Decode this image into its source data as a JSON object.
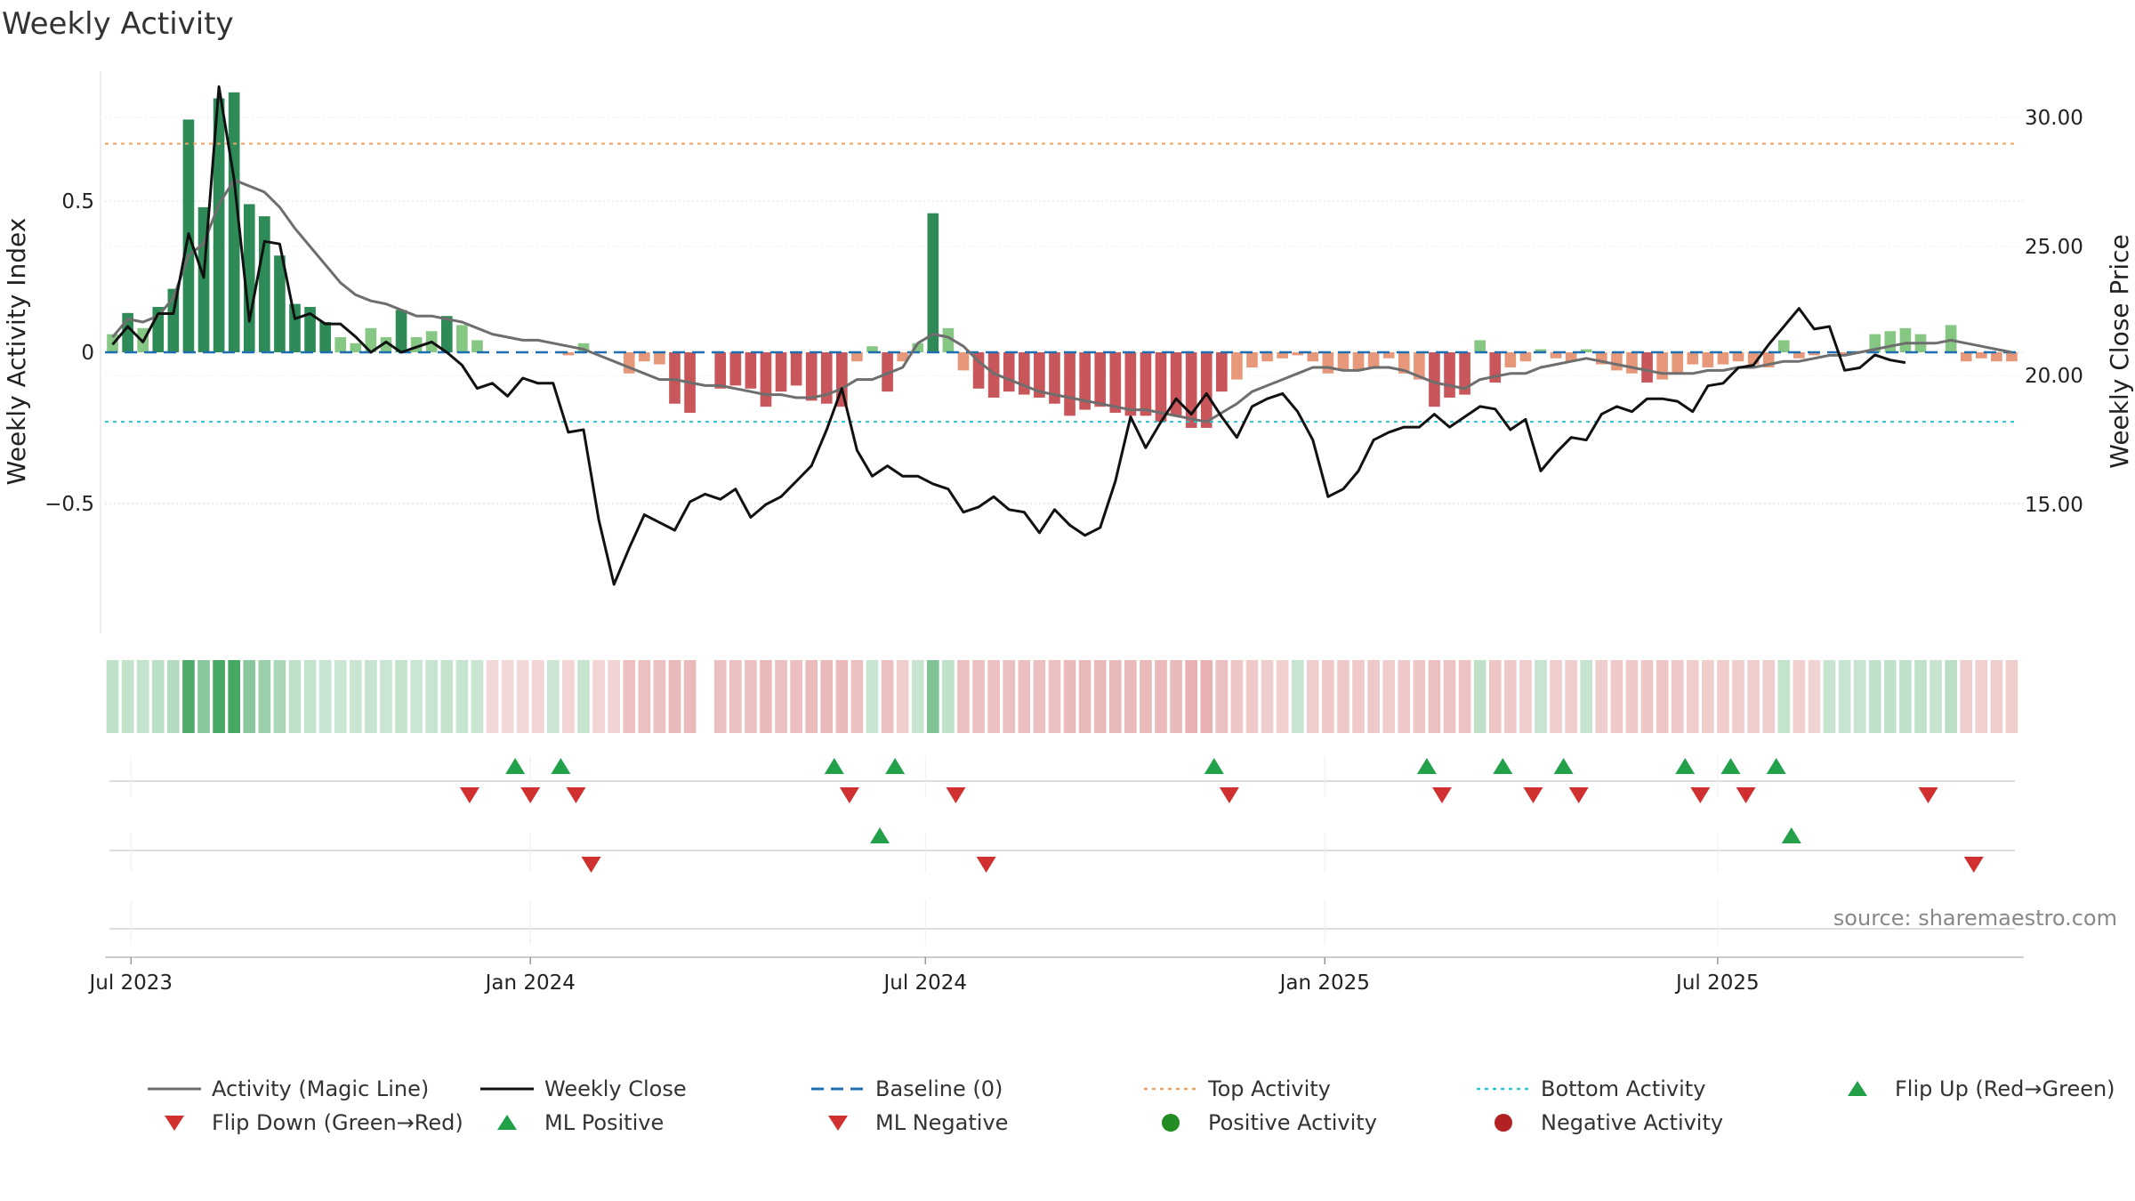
{
  "chart_data": {
    "type": "bar",
    "title": "Weekly Activity",
    "ylabel": "Weekly Activity Index",
    "y2label": "Weekly Close Price",
    "ylim": [
      -0.93,
      0.93
    ],
    "y2lim": [
      10.0,
      31.8
    ],
    "y_ticks": [
      {
        "value": 0.5,
        "label": "0.5"
      },
      {
        "value": 0,
        "label": "0"
      },
      {
        "value": -0.5,
        "label": "−0.5"
      }
    ],
    "y2_ticks": [
      {
        "value": 30,
        "label": "30.00"
      },
      {
        "value": 25,
        "label": "25.00"
      },
      {
        "value": 20,
        "label": "20.00"
      },
      {
        "value": 15,
        "label": "15.00"
      }
    ],
    "top_activity": 0.69,
    "bottom_activity": -0.23,
    "x_start": "2023-06-19",
    "x_ticks": [
      {
        "date": "2023-07-01",
        "label": "Jul 2023"
      },
      {
        "date": "2024-01-01",
        "label": "Jan 2024"
      },
      {
        "date": "2024-07-01",
        "label": "Jul 2024"
      },
      {
        "date": "2025-01-01",
        "label": "Jan 2025"
      },
      {
        "date": "2025-07-01",
        "label": "Jul 2025"
      }
    ],
    "activity_bars": [
      0.06,
      0.13,
      0.08,
      0.15,
      0.21,
      0.77,
      0.48,
      0.84,
      0.86,
      0.49,
      0.45,
      0.32,
      0.16,
      0.15,
      0.1,
      0.05,
      0.03,
      0.08,
      0.05,
      0.14,
      0.05,
      0.07,
      0.12,
      0.09,
      0.04,
      0,
      0,
      0,
      0,
      0,
      -0.01,
      0.03,
      0,
      0,
      -0.07,
      -0.03,
      -0.04,
      -0.17,
      -0.2,
      0,
      -0.12,
      -0.11,
      -0.12,
      -0.18,
      -0.13,
      -0.11,
      -0.16,
      -0.17,
      -0.18,
      -0.03,
      0.02,
      -0.13,
      -0.03,
      0.03,
      0.46,
      0.08,
      -0.06,
      -0.12,
      -0.15,
      -0.13,
      -0.14,
      -0.15,
      -0.17,
      -0.21,
      -0.19,
      -0.18,
      -0.2,
      -0.21,
      -0.21,
      -0.23,
      -0.21,
      -0.25,
      -0.25,
      -0.13,
      -0.09,
      -0.05,
      -0.03,
      -0.02,
      -0.01,
      -0.03,
      -0.07,
      -0.06,
      -0.06,
      -0.05,
      -0.02,
      -0.07,
      -0.09,
      -0.18,
      -0.15,
      -0.14,
      0.04,
      -0.1,
      -0.05,
      -0.03,
      0.01,
      -0.02,
      -0.03,
      0.01,
      -0.04,
      -0.06,
      -0.07,
      -0.1,
      -0.09,
      -0.07,
      -0.04,
      -0.05,
      -0.04,
      -0.03,
      -0.04,
      -0.05,
      0.04,
      -0.02,
      -0.01,
      0,
      -0.01,
      0,
      0.06,
      0.07,
      0.08,
      0.06,
      0,
      0.09,
      -0.03,
      -0.02,
      -0.03,
      -0.03
    ],
    "magic_line": [
      0.05,
      0.11,
      0.1,
      0.12,
      0.18,
      0.32,
      0.36,
      0.49,
      0.57,
      0.55,
      0.53,
      0.48,
      0.41,
      0.35,
      0.29,
      0.23,
      0.19,
      0.17,
      0.16,
      0.14,
      0.12,
      0.12,
      0.11,
      0.1,
      0.08,
      0.06,
      0.05,
      0.04,
      0.04,
      0.03,
      0.02,
      0.01,
      -0.01,
      -0.03,
      -0.05,
      -0.07,
      -0.09,
      -0.09,
      -0.1,
      -0.11,
      -0.11,
      -0.12,
      -0.13,
      -0.14,
      -0.14,
      -0.15,
      -0.15,
      -0.14,
      -0.12,
      -0.09,
      -0.09,
      -0.07,
      -0.05,
      0.03,
      0.06,
      0.05,
      0.02,
      -0.03,
      -0.07,
      -0.09,
      -0.11,
      -0.13,
      -0.14,
      -0.15,
      -0.16,
      -0.17,
      -0.18,
      -0.19,
      -0.19,
      -0.2,
      -0.21,
      -0.22,
      -0.23,
      -0.2,
      -0.17,
      -0.13,
      -0.11,
      -0.09,
      -0.07,
      -0.05,
      -0.05,
      -0.06,
      -0.06,
      -0.05,
      -0.05,
      -0.06,
      -0.08,
      -0.1,
      -0.11,
      -0.12,
      -0.09,
      -0.08,
      -0.07,
      -0.07,
      -0.05,
      -0.04,
      -0.03,
      -0.02,
      -0.03,
      -0.04,
      -0.05,
      -0.06,
      -0.07,
      -0.07,
      -0.07,
      -0.06,
      -0.06,
      -0.05,
      -0.05,
      -0.04,
      -0.03,
      -0.03,
      -0.02,
      -0.01,
      -0.01,
      0,
      0.01,
      0.02,
      0.03,
      0.03,
      0.03,
      0.04,
      0.03,
      0.02,
      0.01,
      0
    ],
    "weekly_close": [
      21.2,
      21.9,
      21.3,
      22.4,
      22.4,
      25.5,
      23.8,
      31.2,
      27.6,
      22.1,
      25.2,
      25.1,
      22.2,
      22.4,
      22.0,
      22.0,
      21.5,
      20.9,
      21.3,
      20.9,
      21.1,
      21.3,
      20.9,
      20.4,
      19.5,
      19.7,
      19.2,
      19.9,
      19.7,
      19.7,
      17.8,
      17.9,
      14.4,
      11.9,
      13.3,
      14.6,
      14.3,
      14.0,
      15.1,
      15.4,
      15.2,
      15.6,
      14.5,
      15.0,
      15.3,
      15.9,
      16.5,
      17.9,
      19.5,
      17.1,
      16.1,
      16.5,
      16.1,
      16.1,
      15.8,
      15.6,
      14.7,
      14.9,
      15.3,
      14.8,
      14.7,
      13.9,
      14.8,
      14.2,
      13.8,
      14.1,
      15.9,
      18.4,
      17.2,
      18.2,
      19.1,
      18.5,
      19.3,
      18.4,
      17.6,
      18.8,
      19.1,
      19.3,
      18.6,
      17.5,
      15.3,
      15.6,
      16.3,
      17.5,
      17.8,
      18.0,
      18.0,
      18.5,
      18.0,
      18.4,
      18.8,
      18.7,
      17.9,
      18.3,
      16.3,
      17.0,
      17.6,
      17.5,
      18.5,
      18.8,
      18.6,
      19.1,
      19.1,
      19.0,
      18.6,
      19.6,
      19.7,
      20.3,
      20.4,
      21.2,
      21.9,
      22.6,
      21.8,
      21.9,
      20.2,
      20.3,
      20.8,
      20.6,
      20.5
    ],
    "heat_strip": [
      0.22,
      0.2,
      0.2,
      0.24,
      0.3,
      0.9,
      0.55,
      0.95,
      0.95,
      0.55,
      0.45,
      0.35,
      0.22,
      0.2,
      0.18,
      0.16,
      0.16,
      0.18,
      0.16,
      0.2,
      0.16,
      0.18,
      0.2,
      0.18,
      0.16,
      -0.12,
      -0.12,
      -0.12,
      -0.14,
      0.16,
      -0.14,
      0.18,
      -0.14,
      -0.16,
      -0.3,
      -0.3,
      -0.3,
      -0.35,
      -0.35,
      null,
      -0.3,
      -0.3,
      -0.3,
      -0.35,
      -0.3,
      -0.3,
      -0.32,
      -0.35,
      -0.35,
      -0.3,
      0.18,
      -0.3,
      -0.2,
      0.18,
      0.6,
      0.22,
      -0.3,
      -0.3,
      -0.3,
      -0.3,
      -0.3,
      -0.3,
      -0.3,
      -0.35,
      -0.35,
      -0.35,
      -0.35,
      -0.35,
      -0.35,
      -0.35,
      -0.35,
      -0.4,
      -0.4,
      -0.3,
      -0.25,
      -0.22,
      -0.2,
      -0.18,
      0.18,
      -0.2,
      -0.22,
      -0.22,
      -0.22,
      -0.22,
      -0.2,
      -0.22,
      -0.25,
      -0.3,
      -0.28,
      -0.28,
      0.22,
      -0.25,
      -0.22,
      -0.2,
      0.18,
      -0.2,
      -0.2,
      0.18,
      -0.2,
      -0.22,
      -0.22,
      -0.25,
      -0.25,
      -0.22,
      -0.2,
      -0.2,
      -0.2,
      -0.2,
      -0.2,
      -0.2,
      0.2,
      -0.18,
      -0.16,
      0.18,
      0.18,
      0.18,
      0.22,
      0.22,
      0.22,
      0.22,
      0.18,
      0.25,
      -0.2,
      -0.18,
      -0.2,
      -0.2
    ],
    "flip_up_dates": [
      "2023-12-25",
      "2024-01-15",
      "2024-05-20",
      "2024-06-17",
      "2024-11-11",
      "2025-02-17",
      "2025-03-24",
      "2025-04-21",
      "2025-06-16",
      "2025-07-07",
      "2025-07-28"
    ],
    "flip_down_dates": [
      "2023-12-04",
      "2024-01-01",
      "2024-01-22",
      "2024-05-27",
      "2024-07-15",
      "2024-11-18",
      "2025-02-24",
      "2025-04-07",
      "2025-04-28",
      "2025-06-23",
      "2025-07-14",
      "2025-10-06"
    ],
    "ml_positive_dates": [
      "2024-06-10",
      "2025-08-04"
    ],
    "ml_negative_dates": [
      "2024-01-29",
      "2024-07-29",
      "2025-10-27"
    ],
    "legend": [
      {
        "key": "magic",
        "label": "Activity (Magic Line)"
      },
      {
        "key": "close",
        "label": "Weekly Close"
      },
      {
        "key": "baseline",
        "label": "Baseline (0)"
      },
      {
        "key": "top",
        "label": "Top Activity"
      },
      {
        "key": "bottom",
        "label": "Bottom Activity"
      },
      {
        "key": "flipup",
        "label": "Flip Up (Red→Green)"
      },
      {
        "key": "flipdown",
        "label": "Flip Down (Green→Red)"
      },
      {
        "key": "mlpos",
        "label": "ML Positive"
      },
      {
        "key": "mlneg",
        "label": "ML Negative"
      },
      {
        "key": "posact",
        "label": "Positive Activity"
      },
      {
        "key": "negact",
        "label": "Negative Activity"
      }
    ],
    "source": "source: sharemaestro.com"
  },
  "colors": {
    "magic": "#6e6e6e",
    "close": "#111111",
    "baseline": "#1f6fb0",
    "top": "#f0a060",
    "bottom": "#2bc4cf",
    "green": "#22a04a",
    "red": "#d03030",
    "grid": "#e2e2e2"
  }
}
